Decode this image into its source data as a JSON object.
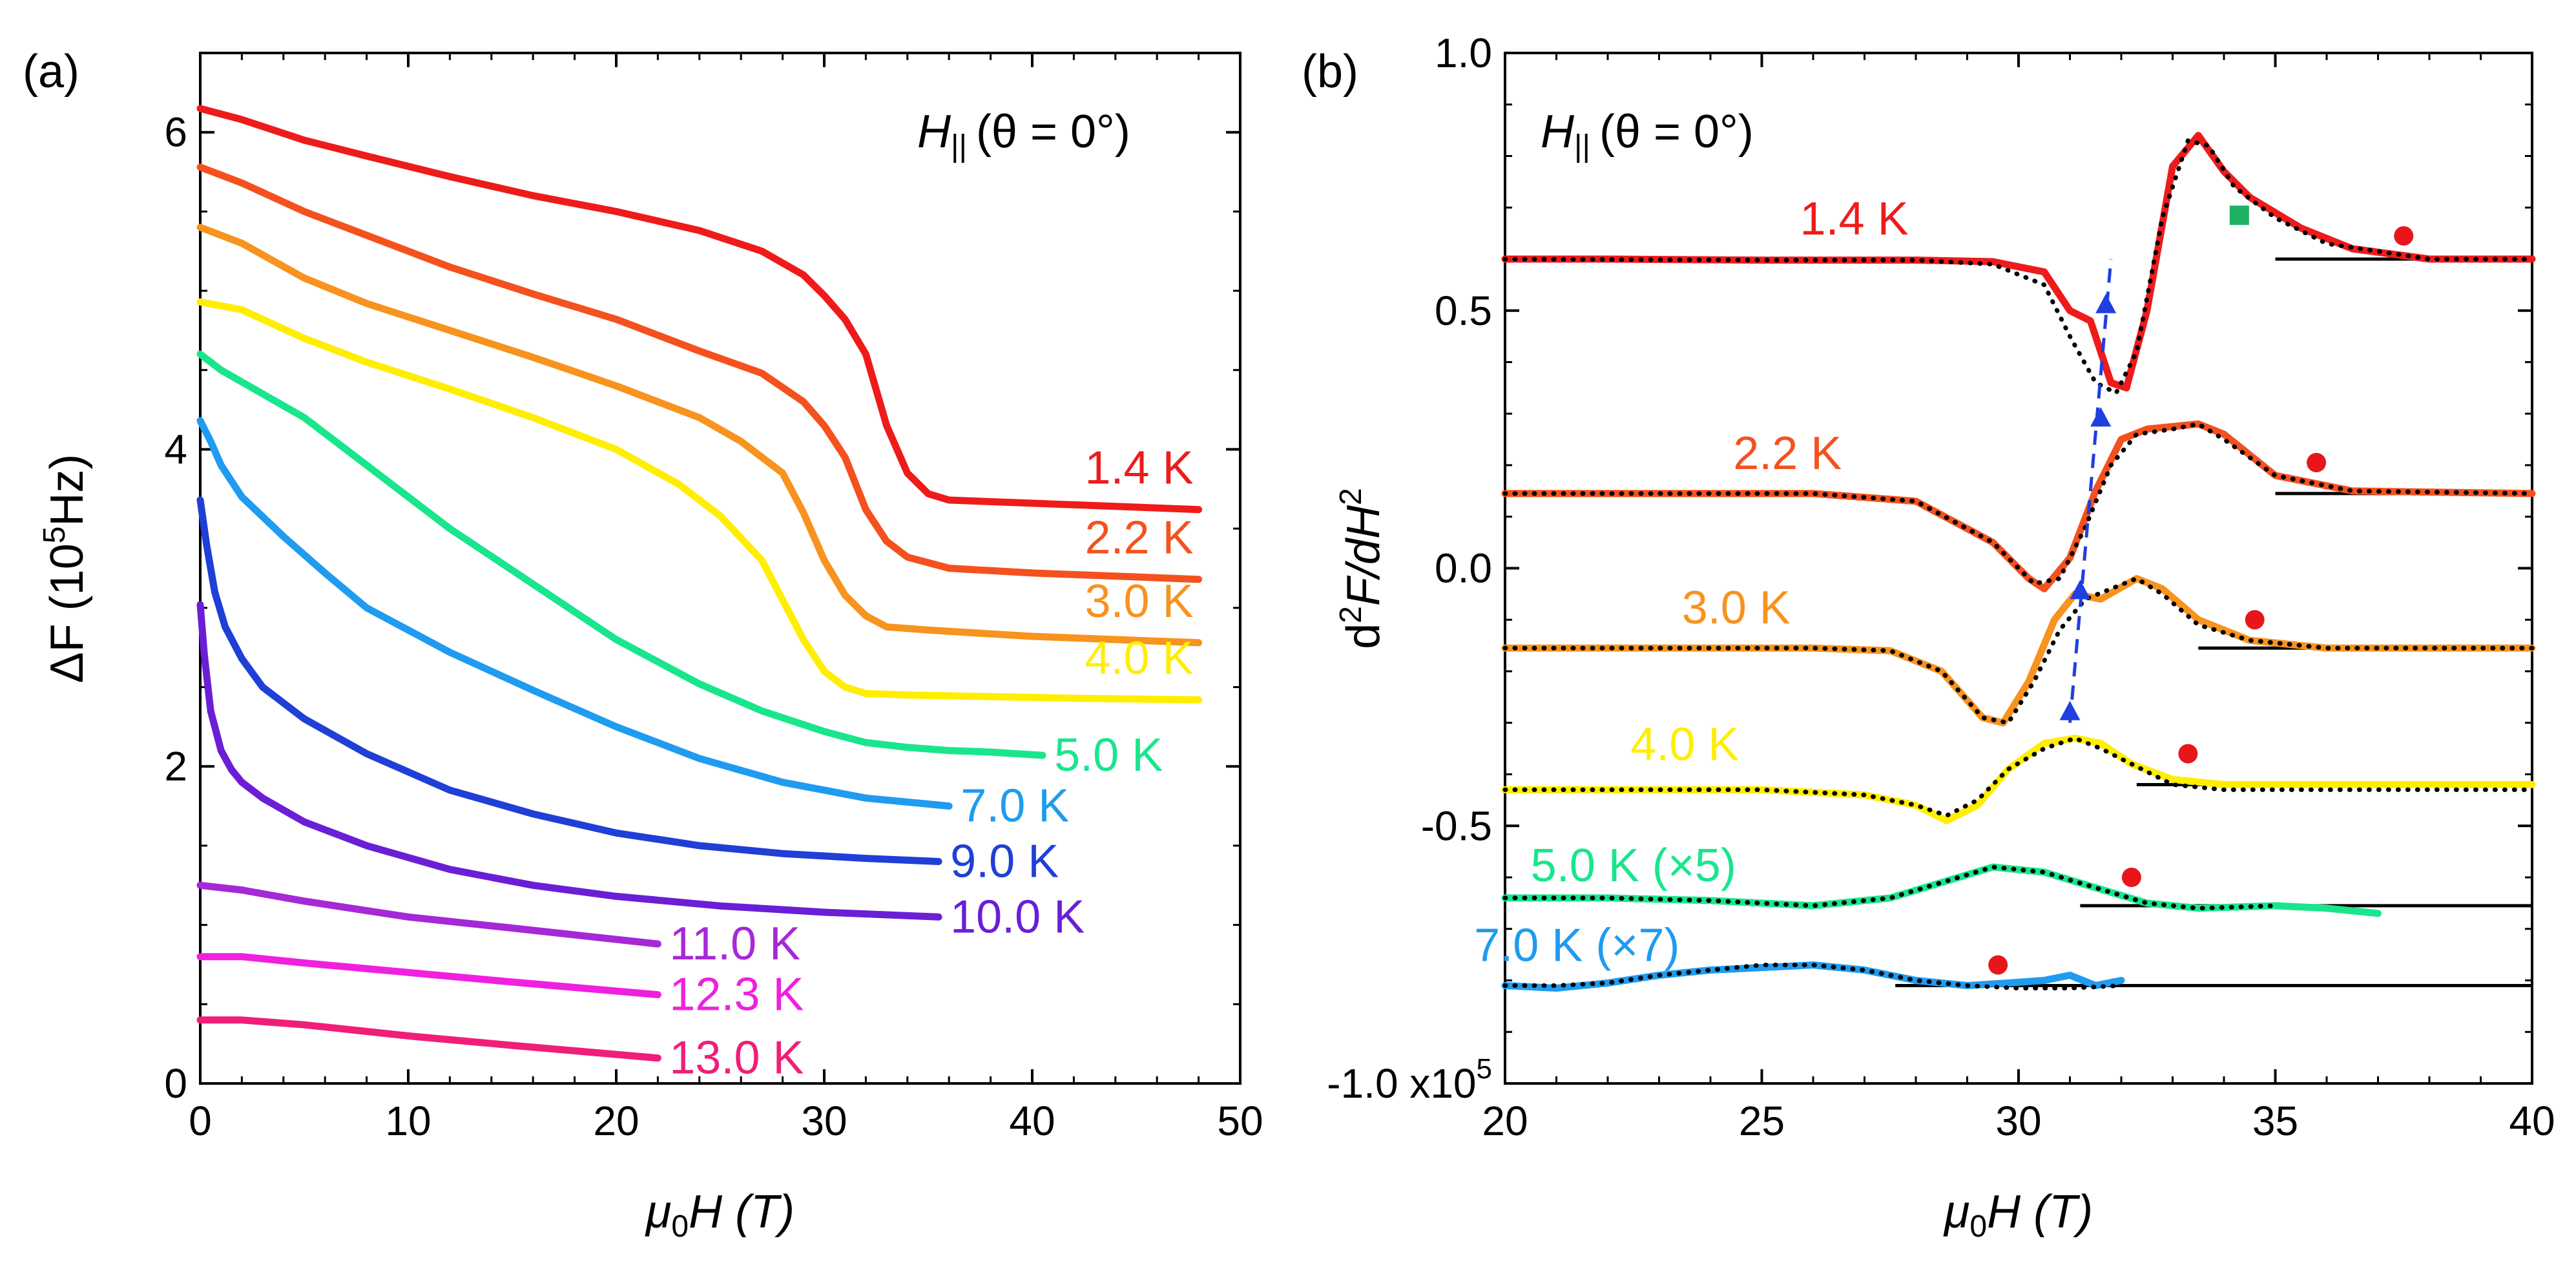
{
  "chart_data": [
    {
      "panel_label": "(a)",
      "type": "line",
      "xlabel_main": "μ",
      "xlabel_sub": "0",
      "xlabel_rest": "H (T)",
      "ylabel_main": "ΔF (10",
      "ylabel_sup": "5",
      "ylabel_rest": "Hz)",
      "annotation_main": "H",
      "annotation_sub": "||",
      "annotation_rest": "(θ = 0°)",
      "xlim": [
        0,
        50
      ],
      "ylim": [
        0,
        6.5
      ],
      "xticks": [
        "0",
        "10",
        "20",
        "30",
        "40",
        "50"
      ],
      "yticks": [
        "0",
        "2",
        "4",
        "6"
      ],
      "series": [
        {
          "name": "1.4 K",
          "color": "#ee1b1b",
          "x": [
            0,
            2,
            5,
            8,
            12,
            16,
            20,
            24,
            27,
            29,
            30,
            31,
            32,
            33,
            34,
            35,
            36,
            40,
            44,
            48
          ],
          "y": [
            6.15,
            6.08,
            5.95,
            5.85,
            5.72,
            5.6,
            5.5,
            5.38,
            5.25,
            5.1,
            4.97,
            4.82,
            4.6,
            4.15,
            3.85,
            3.72,
            3.68,
            3.66,
            3.64,
            3.62
          ]
        },
        {
          "name": "2.2 K",
          "color": "#f4511e",
          "x": [
            0,
            2,
            5,
            8,
            12,
            16,
            20,
            24,
            27,
            29,
            30,
            31,
            32,
            33,
            34,
            36,
            40,
            44,
            48
          ],
          "y": [
            5.78,
            5.68,
            5.5,
            5.35,
            5.15,
            4.98,
            4.82,
            4.62,
            4.48,
            4.3,
            4.15,
            3.95,
            3.62,
            3.42,
            3.32,
            3.25,
            3.22,
            3.2,
            3.18
          ]
        },
        {
          "name": "3.0 K",
          "color": "#f7931e",
          "x": [
            0,
            2,
            5,
            8,
            12,
            16,
            20,
            24,
            26,
            28,
            29,
            30,
            31,
            32,
            33,
            35,
            40,
            44,
            48
          ],
          "y": [
            5.4,
            5.3,
            5.08,
            4.92,
            4.75,
            4.58,
            4.4,
            4.2,
            4.05,
            3.85,
            3.6,
            3.3,
            3.08,
            2.95,
            2.88,
            2.86,
            2.82,
            2.8,
            2.78
          ]
        },
        {
          "name": "4.0 K",
          "color": "#ffee00",
          "x": [
            0,
            2,
            5,
            8,
            12,
            16,
            20,
            23,
            25,
            27,
            28,
            29,
            30,
            31,
            32,
            34,
            38,
            42,
            48
          ],
          "y": [
            4.93,
            4.88,
            4.7,
            4.55,
            4.38,
            4.2,
            4.0,
            3.78,
            3.58,
            3.3,
            3.05,
            2.8,
            2.6,
            2.5,
            2.46,
            2.45,
            2.44,
            2.43,
            2.42
          ]
        },
        {
          "name": "5.0 K",
          "color": "#19e68c",
          "x": [
            0,
            1,
            3,
            5,
            8,
            12,
            16,
            20,
            24,
            27,
            30,
            32,
            34,
            36,
            38,
            40.5
          ],
          "y": [
            4.6,
            4.5,
            4.35,
            4.2,
            3.9,
            3.5,
            3.15,
            2.8,
            2.52,
            2.35,
            2.22,
            2.15,
            2.12,
            2.1,
            2.09,
            2.07
          ]
        },
        {
          "name": "7.0 K",
          "color": "#1f9bf0",
          "x": [
            0,
            0.5,
            1,
            2,
            4,
            6,
            8,
            12,
            16,
            20,
            24,
            28,
            32,
            36
          ],
          "y": [
            4.18,
            4.05,
            3.9,
            3.7,
            3.45,
            3.22,
            3.0,
            2.72,
            2.48,
            2.25,
            2.05,
            1.9,
            1.8,
            1.75
          ]
        },
        {
          "name": "9.0 K",
          "color": "#1f3fd6",
          "x": [
            0,
            0.3,
            0.7,
            1.2,
            2,
            3,
            5,
            8,
            12,
            16,
            20,
            24,
            28,
            32,
            35.5
          ],
          "y": [
            3.68,
            3.4,
            3.1,
            2.88,
            2.68,
            2.5,
            2.3,
            2.08,
            1.85,
            1.7,
            1.58,
            1.5,
            1.45,
            1.42,
            1.4
          ]
        },
        {
          "name": "10.0 K",
          "color": "#6a1fd6",
          "x": [
            0,
            0.2,
            0.5,
            1,
            1.5,
            2,
            3,
            5,
            8,
            12,
            16,
            20,
            25,
            30,
            35.5
          ],
          "y": [
            3.02,
            2.7,
            2.35,
            2.1,
            1.98,
            1.9,
            1.8,
            1.65,
            1.5,
            1.35,
            1.25,
            1.18,
            1.12,
            1.08,
            1.05
          ]
        },
        {
          "name": "11.0 K",
          "color": "#a628d6",
          "x": [
            0,
            2,
            5,
            10,
            15,
            22
          ],
          "y": [
            1.25,
            1.22,
            1.15,
            1.05,
            0.98,
            0.88
          ]
        },
        {
          "name": "12.3 K",
          "color": "#f020e0",
          "x": [
            0,
            2,
            5,
            10,
            15,
            22
          ],
          "y": [
            0.8,
            0.8,
            0.76,
            0.7,
            0.64,
            0.56
          ]
        },
        {
          "name": "13.0 K",
          "color": "#f01e78",
          "x": [
            0,
            2,
            5,
            10,
            15,
            22
          ],
          "y": [
            0.4,
            0.4,
            0.37,
            0.3,
            0.24,
            0.16
          ]
        }
      ]
    },
    {
      "panel_label": "(b)",
      "type": "line",
      "xlabel_main": "μ",
      "xlabel_sub": "0",
      "xlabel_rest": "H (T)",
      "ylabel": "d²F/dH²",
      "ylabel_a": "d",
      "ylabel_sup1": "2",
      "ylabel_b": "F/dH",
      "ylabel_sup2": "2",
      "annotation_main": "H",
      "annotation_sub": "||",
      "annotation_rest": "(θ = 0°)",
      "xlim": [
        20,
        40
      ],
      "ylim": [
        -1.0,
        1.0
      ],
      "xticks": [
        "20",
        "25",
        "30",
        "35",
        "40"
      ],
      "yticks": [
        "1.0",
        "0.5",
        "0.0",
        "-0.5",
        "-1.0 x10"
      ],
      "y_scale_exponent": "5",
      "series": [
        {
          "name": "1.4 K",
          "color": "#ee1b1b",
          "baseline": 0.6,
          "baseline_x": [
            35,
            40
          ],
          "marker_x": 37.5,
          "marker_y": 0.645,
          "square_marker_x": 34.3,
          "square_marker_y": 0.685,
          "square_color": "#1fb264",
          "x": [
            20,
            22,
            25,
            28,
            29.5,
            30.5,
            31,
            31.4,
            31.8,
            32.1,
            32.5,
            33,
            33.5,
            34,
            34.5,
            35,
            35.5,
            36.5,
            38,
            40
          ],
          "y": [
            0.6,
            0.6,
            0.598,
            0.598,
            0.595,
            0.575,
            0.5,
            0.48,
            0.36,
            0.35,
            0.5,
            0.78,
            0.84,
            0.77,
            0.72,
            0.69,
            0.66,
            0.62,
            0.6,
            0.6
          ],
          "fit_x": [
            20,
            25,
            28,
            29.5,
            30.5,
            31,
            31.5,
            31.9,
            32.3,
            32.8,
            33.3,
            33.7,
            34.2,
            35,
            36,
            38,
            40
          ],
          "fit_y": [
            0.6,
            0.598,
            0.598,
            0.59,
            0.55,
            0.45,
            0.36,
            0.34,
            0.42,
            0.68,
            0.83,
            0.82,
            0.74,
            0.68,
            0.63,
            0.6,
            0.6
          ]
        },
        {
          "name": "2.2 K",
          "color": "#f4511e",
          "baseline": 0.145,
          "baseline_x": [
            35,
            40
          ],
          "marker_x": 35.8,
          "marker_y": 0.205,
          "x": [
            20,
            23,
            26,
            28,
            29.5,
            30.2,
            30.5,
            31,
            31.5,
            32,
            32.5,
            33,
            33.5,
            34,
            35,
            36.5,
            40
          ],
          "y": [
            0.145,
            0.145,
            0.145,
            0.13,
            0.05,
            -0.02,
            -0.04,
            0.02,
            0.15,
            0.25,
            0.27,
            0.275,
            0.28,
            0.26,
            0.18,
            0.15,
            0.145
          ],
          "fit_x": [
            20,
            23,
            26,
            28,
            29.5,
            30.3,
            30.8,
            31.3,
            31.8,
            32.3,
            33,
            33.5,
            34,
            35,
            36.5,
            40
          ],
          "fit_y": [
            0.145,
            0.145,
            0.145,
            0.13,
            0.05,
            -0.03,
            -0.02,
            0.08,
            0.2,
            0.26,
            0.27,
            0.28,
            0.25,
            0.18,
            0.15,
            0.145
          ]
        },
        {
          "name": "3.0 K",
          "color": "#f7931e",
          "baseline": -0.155,
          "baseline_x": [
            33.5,
            40
          ],
          "marker_x": 34.6,
          "marker_y": -0.1,
          "x": [
            20,
            23,
            26,
            27.5,
            28.5,
            29.3,
            29.7,
            30.2,
            30.7,
            31.1,
            31.6,
            32.3,
            32.8,
            33.5,
            34.5,
            36,
            40
          ],
          "y": [
            -0.155,
            -0.155,
            -0.155,
            -0.16,
            -0.2,
            -0.29,
            -0.3,
            -0.22,
            -0.1,
            -0.05,
            -0.06,
            -0.02,
            -0.04,
            -0.1,
            -0.14,
            -0.155,
            -0.155
          ],
          "fit_x": [
            20,
            23,
            26,
            27.5,
            28.5,
            29.3,
            29.8,
            30.3,
            30.8,
            31.3,
            31.8,
            32.3,
            32.8,
            33.5,
            34.5,
            36,
            40
          ],
          "fit_y": [
            -0.155,
            -0.155,
            -0.155,
            -0.16,
            -0.2,
            -0.29,
            -0.3,
            -0.22,
            -0.12,
            -0.06,
            -0.04,
            -0.02,
            -0.05,
            -0.11,
            -0.14,
            -0.155,
            -0.155
          ]
        },
        {
          "name": "4.0 K",
          "color": "#ffee00",
          "baseline": -0.42,
          "baseline_x": [
            32.3,
            40
          ],
          "marker_x": 33.3,
          "marker_y": -0.36,
          "x": [
            20,
            23,
            25,
            27,
            28,
            28.6,
            29.2,
            29.8,
            30.5,
            31.1,
            31.6,
            32.2,
            33,
            34,
            36,
            40
          ],
          "y": [
            -0.43,
            -0.43,
            -0.43,
            -0.44,
            -0.46,
            -0.49,
            -0.46,
            -0.39,
            -0.34,
            -0.33,
            -0.34,
            -0.38,
            -0.41,
            -0.42,
            -0.42,
            -0.42
          ],
          "fit_x": [
            20,
            23,
            25,
            27,
            28,
            28.6,
            29.2,
            29.8,
            30.5,
            31.1,
            31.6,
            32.2,
            33,
            34,
            36,
            40
          ],
          "fit_y": [
            -0.43,
            -0.43,
            -0.43,
            -0.44,
            -0.46,
            -0.48,
            -0.45,
            -0.39,
            -0.35,
            -0.33,
            -0.35,
            -0.38,
            -0.42,
            -0.43,
            -0.43,
            -0.43
          ]
        },
        {
          "name": "5.0 K (×5)",
          "color": "#19e68c",
          "baseline": -0.655,
          "baseline_x": [
            31.2,
            40
          ],
          "marker_x": 32.2,
          "marker_y": -0.6,
          "x": [
            20,
            22,
            24,
            26,
            27.5,
            28.5,
            29.5,
            30.5,
            31.5,
            32.5,
            33.5,
            35,
            36,
            37
          ],
          "y": [
            -0.64,
            -0.64,
            -0.645,
            -0.655,
            -0.64,
            -0.61,
            -0.58,
            -0.59,
            -0.62,
            -0.65,
            -0.66,
            -0.655,
            -0.66,
            -0.67
          ],
          "fit_x": [
            20,
            22,
            24,
            26,
            27.5,
            28.5,
            29.5,
            30.5,
            31.5,
            32.5,
            33.5,
            35
          ],
          "fit_y": [
            -0.64,
            -0.64,
            -0.645,
            -0.655,
            -0.64,
            -0.61,
            -0.58,
            -0.59,
            -0.62,
            -0.65,
            -0.66,
            -0.655
          ]
        },
        {
          "name": "7.0 K (×7)",
          "color": "#1f9bf0",
          "baseline": -0.81,
          "baseline_x": [
            27.6,
            40
          ],
          "marker_x": 29.6,
          "marker_y": -0.77,
          "x": [
            20,
            21,
            22,
            23,
            24,
            25,
            26,
            27,
            28,
            29,
            29.8,
            30.5,
            31,
            31.5,
            32
          ],
          "y": [
            -0.81,
            -0.815,
            -0.805,
            -0.79,
            -0.78,
            -0.775,
            -0.77,
            -0.78,
            -0.8,
            -0.81,
            -0.805,
            -0.8,
            -0.79,
            -0.81,
            -0.8
          ],
          "fit_x": [
            20,
            21,
            22,
            23,
            24,
            25,
            26,
            27,
            28,
            29,
            30,
            31,
            32
          ],
          "fit_y": [
            -0.81,
            -0.81,
            -0.805,
            -0.79,
            -0.78,
            -0.77,
            -0.77,
            -0.78,
            -0.8,
            -0.81,
            -0.815,
            -0.815,
            -0.81
          ]
        }
      ],
      "transition_markers": {
        "color": "#1f3fe0",
        "points": [
          [
            31.0,
            -0.28
          ],
          [
            31.2,
            -0.045
          ],
          [
            31.6,
            0.29
          ],
          [
            31.7,
            0.51
          ]
        ],
        "guide_x": [
          31.0,
          31.8
        ],
        "guide_y": [
          -0.3,
          0.6
        ]
      }
    }
  ]
}
